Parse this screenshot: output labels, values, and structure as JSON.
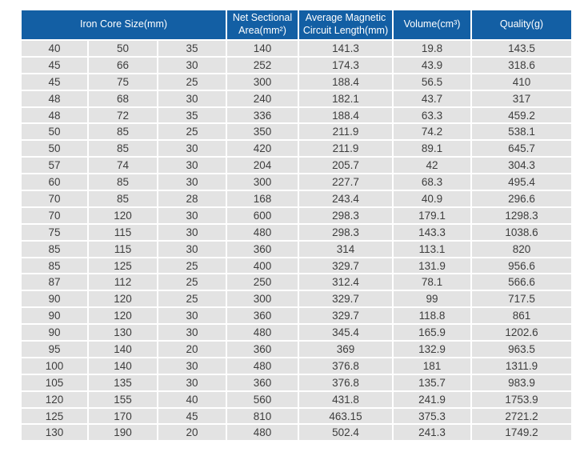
{
  "colors": {
    "header_bg": "#135fa4",
    "header_text": "#ffffff",
    "row_bg": "#e3e3e3",
    "cell_text": "#3d3d3d",
    "page_bg": "#ffffff"
  },
  "table": {
    "headers": {
      "iron_core": "Iron Core Size(mm)",
      "net_sectional": "Net Sectional Area(mm²)",
      "avg_magnetic": "Average Magnetic Circuit Length(mm)",
      "volume": "Volume(cm³)",
      "quality": "Quality(g)"
    },
    "rows": [
      [
        "40",
        "50",
        "35",
        "140",
        "141.3",
        "19.8",
        "143.5"
      ],
      [
        "45",
        "66",
        "30",
        "252",
        "174.3",
        "43.9",
        "318.6"
      ],
      [
        "45",
        "75",
        "25",
        "300",
        "188.4",
        "56.5",
        "410"
      ],
      [
        "48",
        "68",
        "30",
        "240",
        "182.1",
        "43.7",
        "317"
      ],
      [
        "48",
        "72",
        "35",
        "336",
        "188.4",
        "63.3",
        "459.2"
      ],
      [
        "50",
        "85",
        "25",
        "350",
        "211.9",
        "74.2",
        "538.1"
      ],
      [
        "50",
        "85",
        "30",
        "420",
        "211.9",
        "89.1",
        "645.7"
      ],
      [
        "57",
        "74",
        "30",
        "204",
        "205.7",
        "42",
        "304.3"
      ],
      [
        "60",
        "85",
        "30",
        "300",
        "227.7",
        "68.3",
        "495.4"
      ],
      [
        "70",
        "85",
        "28",
        "168",
        "243.4",
        "40.9",
        "296.6"
      ],
      [
        "70",
        "120",
        "30",
        "600",
        "298.3",
        "179.1",
        "1298.3"
      ],
      [
        "75",
        "115",
        "30",
        "480",
        "298.3",
        "143.3",
        "1038.6"
      ],
      [
        "85",
        "115",
        "30",
        "360",
        "314",
        "113.1",
        "820"
      ],
      [
        "85",
        "125",
        "25",
        "400",
        "329.7",
        "131.9",
        "956.6"
      ],
      [
        "87",
        "112",
        "25",
        "250",
        "312.4",
        "78.1",
        "566.6"
      ],
      [
        "90",
        "120",
        "25",
        "300",
        "329.7",
        "99",
        "717.5"
      ],
      [
        "90",
        "120",
        "30",
        "360",
        "329.7",
        "118.8",
        "861"
      ],
      [
        "90",
        "130",
        "30",
        "480",
        "345.4",
        "165.9",
        "1202.6"
      ],
      [
        "95",
        "140",
        "20",
        "360",
        "369",
        "132.9",
        "963.5"
      ],
      [
        "100",
        "140",
        "30",
        "480",
        "376.8",
        "181",
        "1311.9"
      ],
      [
        "105",
        "135",
        "30",
        "360",
        "376.8",
        "135.7",
        "983.9"
      ],
      [
        "120",
        "155",
        "40",
        "560",
        "431.8",
        "241.9",
        "1753.9"
      ],
      [
        "125",
        "170",
        "45",
        "810",
        "463.15",
        "375.3",
        "2721.2"
      ],
      [
        "130",
        "190",
        "20",
        "480",
        "502.4",
        "241.3",
        "1749.2"
      ]
    ]
  }
}
